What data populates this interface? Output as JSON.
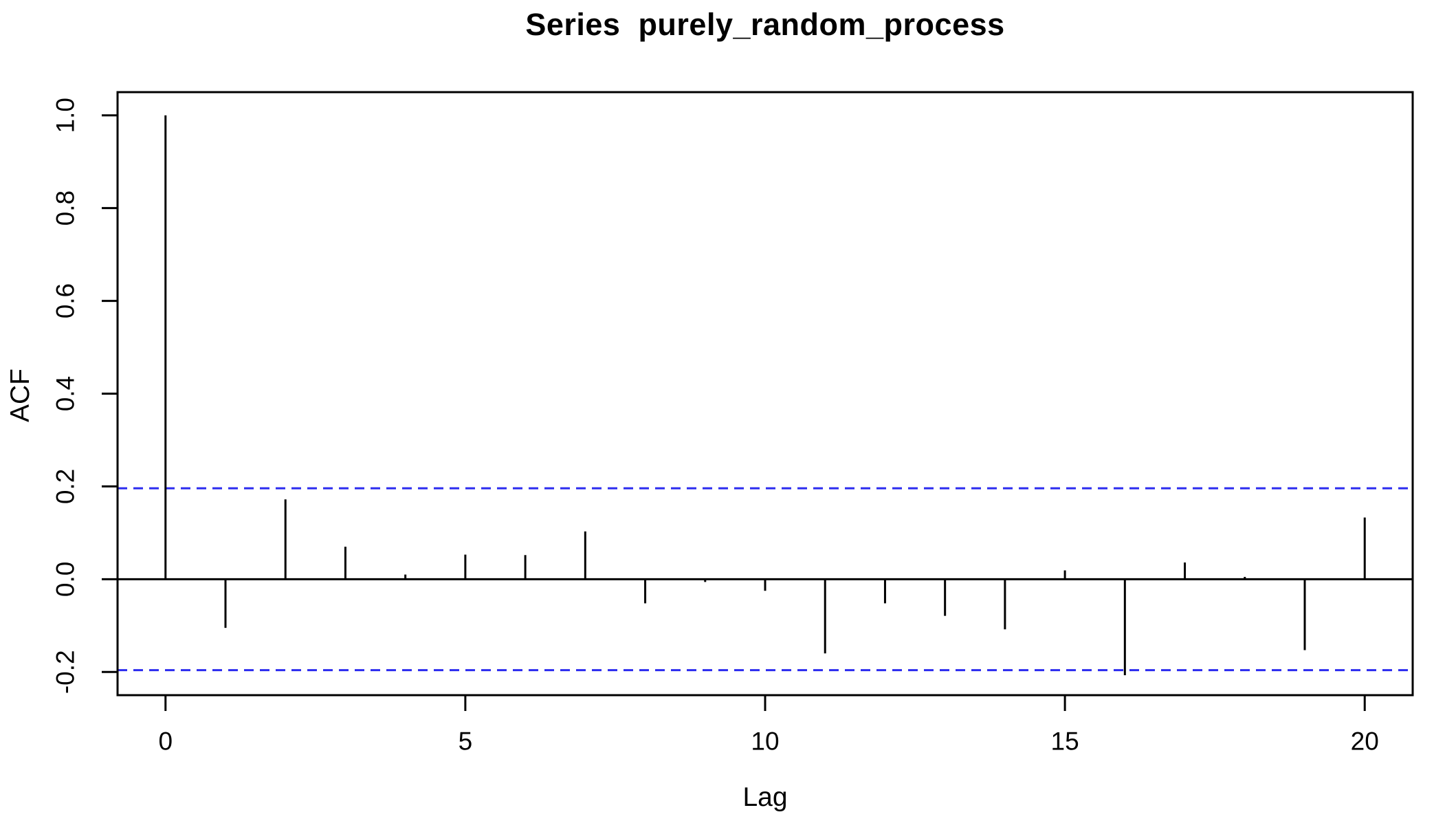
{
  "figure": {
    "title": "Series  purely_random_process",
    "xlabel": "Lag",
    "ylabel": "ACF"
  },
  "chart_data": {
    "type": "bar",
    "subtype": "acf-stick-plot",
    "title": "Series  purely_random_process",
    "xlabel": "Lag",
    "ylabel": "ACF",
    "x": [
      0,
      1,
      2,
      3,
      4,
      5,
      6,
      7,
      8,
      9,
      10,
      11,
      12,
      13,
      14,
      15,
      16,
      17,
      18,
      19,
      20
    ],
    "values": [
      1.0,
      -0.105,
      0.172,
      0.07,
      0.01,
      0.053,
      0.052,
      0.103,
      -0.052,
      -0.006,
      -0.025,
      -0.16,
      -0.052,
      -0.079,
      -0.108,
      0.019,
      -0.207,
      0.036,
      0.005,
      -0.153,
      0.133
    ],
    "confidence_bounds": {
      "upper": 0.196,
      "lower": -0.196,
      "line_style": "dashed",
      "color": "#2B2BEF"
    },
    "xlim": [
      -0.8,
      20.8
    ],
    "ylim": [
      -0.25,
      1.05
    ],
    "xticks": [
      0,
      5,
      10,
      15,
      20
    ],
    "xtick_labels": [
      "0",
      "5",
      "10",
      "15",
      "20"
    ],
    "yticks": [
      1.0,
      0.8,
      0.6,
      0.4,
      0.2,
      0.0,
      -0.2
    ],
    "ytick_labels": [
      "1.0",
      "0.8",
      "0.6",
      "0.4",
      "0.2",
      "0.0",
      "-0.2"
    ],
    "bar_color": "#000000",
    "axis_color": "#000000",
    "background": "#FFFFFF",
    "grid": false,
    "legend": null
  }
}
